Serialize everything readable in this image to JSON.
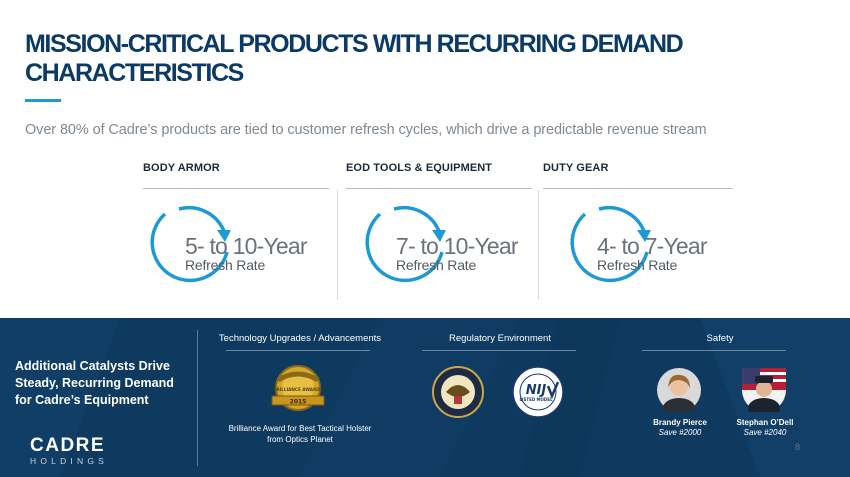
{
  "slide": {
    "title": "MISSION-CRITICAL PRODUCTS WITH RECURRING DEMAND CHARACTERISTICS",
    "subtitle": "Over 80% of Cadre’s products are tied to customer refresh cycles, which drive a predictable revenue stream",
    "page_number": "8"
  },
  "columns": [
    {
      "heading": "BODY ARMOR",
      "years": "5- to 10-Year",
      "label": "Refresh Rate"
    },
    {
      "heading": "EOD TOOLS & EQUIPMENT",
      "years": "7- to 10-Year",
      "label": "Refresh Rate"
    },
    {
      "heading": "DUTY GEAR",
      "years": "4- to 7-Year",
      "label": "Refresh Rate"
    }
  ],
  "bottom": {
    "catalyst_text": "Additional Catalysts Drive Steady, Recurring Demand for Cadre’s Equipment",
    "logo_main": "CADRE",
    "logo_sub": "HOLDINGS",
    "sections": {
      "technology": "Technology Upgrades / Advancements",
      "regulatory": "Regulatory Environment",
      "safety": "Safety"
    },
    "award": {
      "ribbon": "BRILLIANCE AWARDS",
      "year": "2015",
      "caption": "Brilliance Award for Best Tactical Holster from Optics Planet"
    },
    "nij_badge": {
      "main": "NIJ",
      "sub": "LISTED MODEL"
    },
    "people": [
      {
        "name": "Brandy Pierce",
        "save": "Save #2000"
      },
      {
        "name": "Stephan O’Dell",
        "save": "Save #2040"
      }
    ]
  },
  "colors": {
    "title": "#0b3a66",
    "accent": "#1d9ad6",
    "panel": "#0f3a5f"
  }
}
